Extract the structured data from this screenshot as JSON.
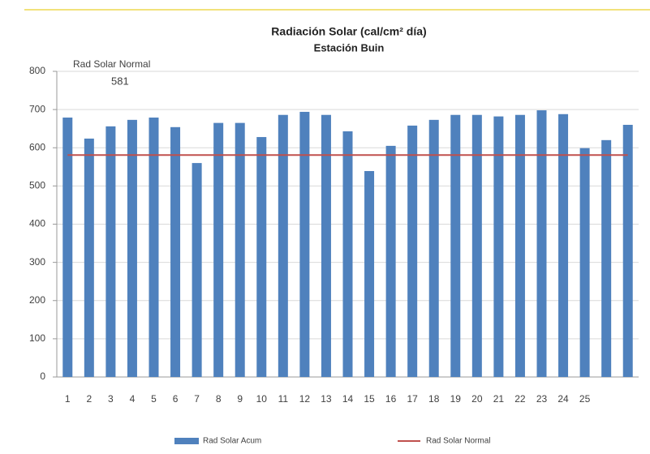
{
  "chart_data": {
    "type": "bar",
    "title": "Radiación Solar (cal/cm² día)",
    "subtitle": "Estación Buin",
    "annotation": "Rad Solar Normal",
    "categories": [
      "1",
      "2",
      "3",
      "4",
      "5",
      "6",
      "7",
      "8",
      "9",
      "10",
      "11",
      "12",
      "13",
      "14",
      "15",
      "16",
      "17",
      "18",
      "19",
      "20",
      "21",
      "22",
      "23",
      "24",
      "25",
      null,
      null
    ],
    "series": [
      {
        "name": "Rad Solar Acum",
        "type": "bar",
        "color": "#4f81bd",
        "values": [
          679,
          624,
          656,
          673,
          679,
          654,
          560,
          665,
          665,
          628,
          686,
          694,
          686,
          643,
          539,
          605,
          658,
          673,
          686,
          686,
          682,
          686,
          698,
          688,
          599,
          620,
          660
        ]
      },
      {
        "name": "Rad Solar Normal",
        "type": "line",
        "color": "#c0504d",
        "values": [
          581,
          581,
          581,
          581,
          581,
          581,
          581,
          581,
          581,
          581,
          581,
          581,
          581,
          581,
          581,
          581,
          581,
          581,
          581,
          581,
          581,
          581,
          581,
          581,
          581,
          581,
          581
        ]
      }
    ],
    "ylim": [
      0,
      800
    ],
    "yticks": [
      0,
      100,
      200,
      300,
      400,
      500,
      600,
      700,
      800
    ],
    "grid": true,
    "legend": "bottom"
  }
}
